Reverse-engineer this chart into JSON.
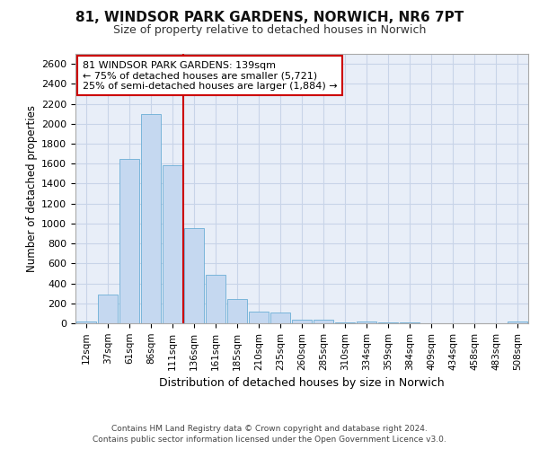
{
  "title1": "81, WINDSOR PARK GARDENS, NORWICH, NR6 7PT",
  "title2": "Size of property relative to detached houses in Norwich",
  "xlabel": "Distribution of detached houses by size in Norwich",
  "ylabel": "Number of detached properties",
  "bar_categories": [
    "12sqm",
    "37sqm",
    "61sqm",
    "86sqm",
    "111sqm",
    "136sqm",
    "161sqm",
    "185sqm",
    "210sqm",
    "235sqm",
    "260sqm",
    "285sqm",
    "310sqm",
    "334sqm",
    "359sqm",
    "384sqm",
    "409sqm",
    "434sqm",
    "458sqm",
    "483sqm",
    "508sqm"
  ],
  "bar_values": [
    20,
    290,
    1650,
    2100,
    1580,
    950,
    490,
    240,
    115,
    105,
    35,
    40,
    10,
    15,
    5,
    5,
    2,
    2,
    2,
    2,
    15
  ],
  "bar_color": "#c5d8f0",
  "bar_edgecolor": "#6baed6",
  "property_line_label": "81 WINDSOR PARK GARDENS: 139sqm",
  "annotation_line1": "← 75% of detached houses are smaller (5,721)",
  "annotation_line2": "25% of semi-detached houses are larger (1,884) →",
  "annotation_box_color": "#ffffff",
  "annotation_box_edgecolor": "#cc0000",
  "ylim": [
    0,
    2700
  ],
  "yticks": [
    0,
    200,
    400,
    600,
    800,
    1000,
    1200,
    1400,
    1600,
    1800,
    2000,
    2200,
    2400,
    2600
  ],
  "grid_color": "#c8d4e8",
  "background_color": "#e8eef8",
  "line_color": "#cc0000",
  "footer_line1": "Contains HM Land Registry data © Crown copyright and database right 2024.",
  "footer_line2": "Contains public sector information licensed under the Open Government Licence v3.0."
}
